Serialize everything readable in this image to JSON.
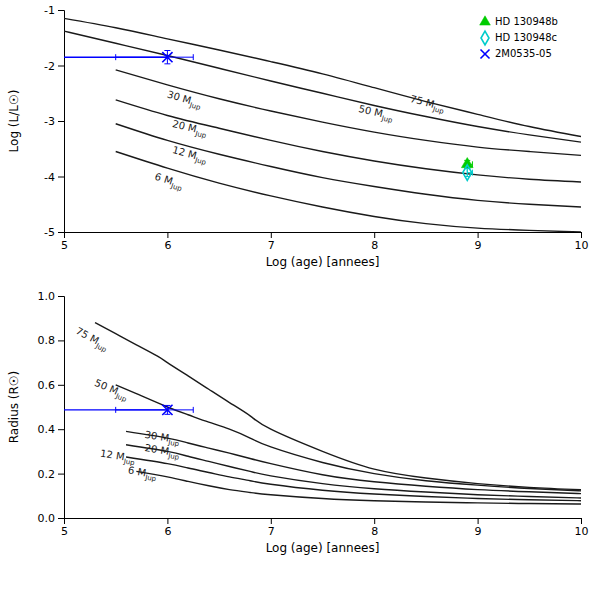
{
  "chart_data": [
    {
      "type": "line",
      "xlabel": "Log (age) [annees]",
      "ylabel": "Log (L/L☉)",
      "xlim": [
        5,
        10
      ],
      "ylim": [
        -5,
        -1
      ],
      "xticks": [
        5,
        6,
        7,
        8,
        9,
        10
      ],
      "yticks": [
        -5,
        -4,
        -3,
        -2,
        -1
      ],
      "grid": false,
      "legend": "upper right",
      "series": [
        {
          "type": "line",
          "color": "#1a1a1a",
          "x": [
            5.5,
            6.0,
            6.5,
            7.0,
            7.5,
            8.0,
            8.5,
            9.0,
            9.5,
            10.0
          ],
          "values": [
            -3.55,
            -3.85,
            -4.12,
            -4.35,
            -4.55,
            -4.72,
            -4.85,
            -4.93,
            -4.97,
            -5.0
          ]
        },
        {
          "type": "line",
          "color": "#1a1a1a",
          "x": [
            5.5,
            6.0,
            6.5,
            7.0,
            7.5,
            8.0,
            8.5,
            9.0,
            9.5,
            10.0
          ],
          "values": [
            -3.05,
            -3.35,
            -3.6,
            -3.82,
            -4.02,
            -4.18,
            -4.32,
            -4.43,
            -4.5,
            -4.55
          ]
        },
        {
          "type": "line",
          "color": "#1a1a1a",
          "x": [
            5.5,
            6.0,
            6.5,
            7.0,
            7.5,
            8.0,
            8.5,
            9.0,
            9.5,
            10.0
          ],
          "values": [
            -2.62,
            -2.9,
            -3.13,
            -3.35,
            -3.55,
            -3.72,
            -3.86,
            -3.97,
            -4.05,
            -4.1
          ]
        },
        {
          "type": "line",
          "color": "#1a1a1a",
          "x": [
            5.5,
            6.0,
            6.5,
            7.0,
            7.5,
            8.0,
            8.5,
            9.0,
            9.5,
            10.0
          ],
          "values": [
            -2.08,
            -2.35,
            -2.6,
            -2.82,
            -3.02,
            -3.2,
            -3.35,
            -3.47,
            -3.55,
            -3.62
          ]
        },
        {
          "type": "line",
          "color": "#1a1a1a",
          "x": [
            5.0,
            5.5,
            6.0,
            6.5,
            7.0,
            7.5,
            8.0,
            8.5,
            9.0,
            9.5,
            10.0
          ],
          "values": [
            -1.38,
            -1.6,
            -1.82,
            -2.05,
            -2.28,
            -2.5,
            -2.72,
            -2.92,
            -3.1,
            -3.25,
            -3.38
          ]
        },
        {
          "type": "line",
          "color": "#1a1a1a",
          "x": [
            5.0,
            5.5,
            6.0,
            6.5,
            7.0,
            7.5,
            8.0,
            8.5,
            9.0,
            9.5,
            10.0
          ],
          "values": [
            -1.15,
            -1.32,
            -1.52,
            -1.72,
            -1.93,
            -2.15,
            -2.4,
            -2.65,
            -2.88,
            -3.1,
            -3.28
          ]
        },
        {
          "type": "scatter",
          "name": "HD 130948b",
          "color": "#00cc00",
          "marker": "triangle",
          "x": [
            8.9
          ],
          "values": [
            -3.78
          ],
          "xerr_lo": [
            0.0
          ],
          "xerr_hi": [
            0.05
          ],
          "yerr_lo": [
            0.07
          ],
          "yerr_hi": [
            0.07
          ]
        },
        {
          "type": "scatter",
          "name": "HD 130948c",
          "color": "#00cccc",
          "marker": "diamond-open",
          "x": [
            8.9
          ],
          "values": [
            -3.93
          ],
          "xerr_lo": [
            0.0
          ],
          "xerr_hi": [
            0.05
          ],
          "yerr_lo": [
            0.07
          ],
          "yerr_hi": [
            0.07
          ]
        },
        {
          "type": "scatter",
          "name": "2M0535-05",
          "color": "blue",
          "marker": "x",
          "x": [
            6.0
          ],
          "values": [
            -1.85
          ],
          "xerr_lo": [
            0.5
          ],
          "xerr_hi": [
            0.25
          ],
          "yerr_lo": [
            0.12
          ],
          "yerr_hi": [
            0.12
          ]
        },
        {
          "type": "line",
          "color": "blue",
          "x": [
            5.0,
            6.0
          ],
          "values": [
            -1.85,
            -1.85
          ]
        }
      ],
      "annotations": [
        {
          "text": "6 MJup",
          "x": 5.88,
          "y": -4.0
        },
        {
          "text": "12 MJup",
          "x": 6.05,
          "y": -3.52
        },
        {
          "text": "20 MJup",
          "x": 6.05,
          "y": -3.05
        },
        {
          "text": "30 MJup",
          "x": 6.0,
          "y": -2.52
        },
        {
          "text": "50 MJup",
          "x": 7.85,
          "y": -2.78
        },
        {
          "text": "75 MJup",
          "x": 8.35,
          "y": -2.6
        }
      ]
    },
    {
      "type": "line",
      "xlabel": "Log (age) [annees]",
      "ylabel": "Radius (R☉)",
      "xlim": [
        5,
        10
      ],
      "ylim": [
        0.0,
        1.0
      ],
      "xticks": [
        5,
        6,
        7,
        8,
        9,
        10
      ],
      "yticks": [
        {
          "value": 0.0,
          "label": "0.0"
        },
        0.2,
        0.4,
        0.6,
        0.8,
        {
          "value": 1.0,
          "label": "1.0"
        }
      ],
      "grid": false,
      "series": [
        {
          "type": "line",
          "color": "#1a1a1a",
          "x": [
            5.7,
            6.0,
            6.2,
            6.4,
            6.6,
            6.8,
            7.0,
            7.5,
            8.0,
            8.5,
            9.0,
            9.5,
            10.0
          ],
          "values": [
            0.21,
            0.185,
            0.165,
            0.145,
            0.128,
            0.115,
            0.105,
            0.088,
            0.078,
            0.072,
            0.068,
            0.065,
            0.063
          ]
        },
        {
          "type": "line",
          "color": "#1a1a1a",
          "x": [
            5.6,
            6.0,
            6.2,
            6.4,
            6.6,
            6.8,
            7.0,
            7.5,
            8.0,
            8.5,
            9.0,
            9.5,
            10.0
          ],
          "values": [
            0.275,
            0.245,
            0.225,
            0.205,
            0.185,
            0.168,
            0.152,
            0.125,
            0.108,
            0.097,
            0.088,
            0.082,
            0.078
          ]
        },
        {
          "type": "line",
          "color": "#1a1a1a",
          "x": [
            5.6,
            6.0,
            6.2,
            6.4,
            6.6,
            6.8,
            7.0,
            7.5,
            8.0,
            8.5,
            9.0,
            9.5,
            10.0
          ],
          "values": [
            0.33,
            0.3,
            0.278,
            0.255,
            0.232,
            0.21,
            0.19,
            0.155,
            0.132,
            0.117,
            0.105,
            0.097,
            0.09
          ]
        },
        {
          "type": "line",
          "color": "#1a1a1a",
          "x": [
            5.6,
            6.0,
            6.2,
            6.4,
            6.6,
            6.8,
            7.0,
            7.5,
            8.0,
            8.5,
            9.0,
            9.5,
            10.0
          ],
          "values": [
            0.39,
            0.36,
            0.338,
            0.315,
            0.292,
            0.268,
            0.245,
            0.195,
            0.163,
            0.143,
            0.128,
            0.118,
            0.11
          ]
        },
        {
          "type": "line",
          "color": "#1a1a1a",
          "x": [
            5.5,
            5.7,
            6.0,
            6.2,
            6.4,
            6.6,
            6.8,
            7.0,
            7.5,
            8.0,
            8.5,
            9.0,
            9.5,
            10.0
          ],
          "values": [
            0.6,
            0.56,
            0.5,
            0.465,
            0.432,
            0.4,
            0.36,
            0.32,
            0.25,
            0.2,
            0.168,
            0.148,
            0.133,
            0.122
          ]
        },
        {
          "type": "line",
          "color": "#1a1a1a",
          "x": [
            5.3,
            5.5,
            5.7,
            5.9,
            6.0,
            6.2,
            6.4,
            6.6,
            6.8,
            7.0,
            7.5,
            8.0,
            8.5,
            9.0,
            9.5,
            10.0
          ],
          "values": [
            0.88,
            0.83,
            0.78,
            0.73,
            0.7,
            0.64,
            0.58,
            0.52,
            0.46,
            0.4,
            0.3,
            0.22,
            0.18,
            0.155,
            0.138,
            0.127
          ]
        },
        {
          "type": "scatter",
          "color": "blue",
          "marker": "x",
          "x": [
            6.0
          ],
          "values": [
            0.487
          ],
          "xerr_lo": [
            0.5
          ],
          "xerr_hi": [
            0.25
          ],
          "yerr_lo": [
            0.02
          ],
          "yerr_hi": [
            0.02
          ]
        },
        {
          "type": "line",
          "color": "blue",
          "x": [
            5.0,
            6.0
          ],
          "values": [
            0.487,
            0.487
          ]
        }
      ],
      "annotations": [
        {
          "text": "6 MJup",
          "x": 5.62,
          "y": 0.215
        },
        {
          "text": "12 MJup",
          "x": 5.35,
          "y": 0.29
        },
        {
          "text": "20 MJup",
          "x": 5.78,
          "y": 0.315
        },
        {
          "text": "30 MJup",
          "x": 5.78,
          "y": 0.375
        },
        {
          "text": "50 MJup",
          "x": 5.3,
          "y": 0.61
        },
        {
          "text": "75 MJup",
          "x": 5.12,
          "y": 0.845
        }
      ]
    }
  ]
}
